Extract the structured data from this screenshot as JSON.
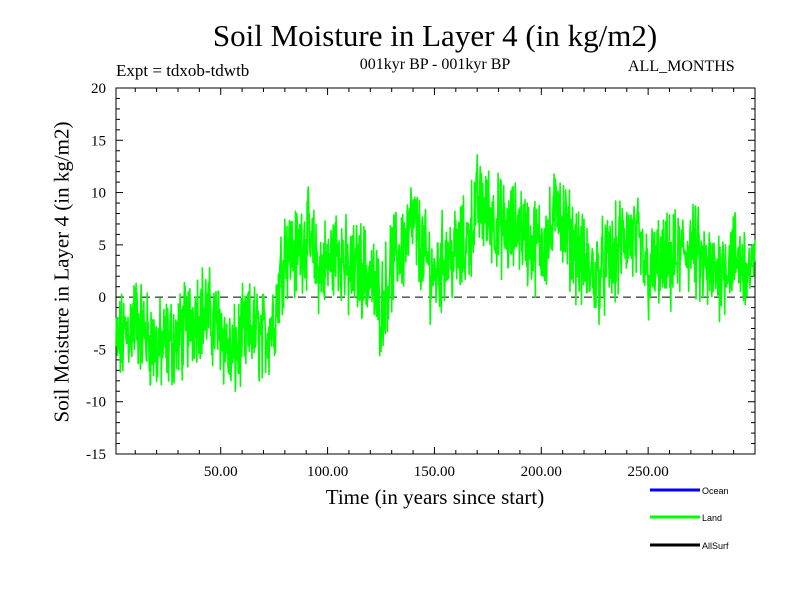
{
  "title": "Soil Moisture in Layer 4 (in kg/m2)",
  "experiment": "Expt = tdxob-tdwtb",
  "period": "001kyr BP - 001kyr BP",
  "months": "ALL_MONTHS",
  "chart_data": {
    "type": "line",
    "xlabel": "Time (in years since start)",
    "ylabel": "Soil Moisture in Layer 4 (in kg/m2)",
    "xlim": [
      1,
      300
    ],
    "ylim": [
      -15,
      20
    ],
    "xticks": [
      50,
      100,
      150,
      200,
      250
    ],
    "xtick_labels": [
      "50.00",
      "100.00",
      "150.00",
      "200.00",
      "250.00"
    ],
    "yticks": [
      -15,
      -10,
      -5,
      0,
      5,
      10,
      15,
      20
    ],
    "ytick_labels": [
      "-15",
      "-10",
      "-5",
      "0",
      "5",
      "10",
      "15",
      "20"
    ],
    "zero_line": "dashed",
    "grid": false,
    "legend_placement": "bottom-right",
    "series": [
      {
        "name": "Ocean",
        "color": "#0000ff",
        "values": []
      },
      {
        "name": "Land",
        "color": "#00ff00",
        "x": [
          1,
          10,
          20,
          30,
          40,
          50,
          55,
          60,
          65,
          70,
          75,
          80,
          85,
          90,
          95,
          100,
          105,
          110,
          115,
          120,
          125,
          130,
          135,
          140,
          145,
          150,
          155,
          160,
          165,
          170,
          175,
          180,
          185,
          190,
          195,
          200,
          205,
          208,
          210,
          215,
          220,
          225,
          230,
          235,
          240,
          245,
          250,
          255,
          260,
          265,
          270,
          275,
          280,
          285,
          290,
          295,
          300
        ],
        "values": [
          -5,
          -2,
          -5,
          -4,
          -1,
          -3,
          -6,
          -4,
          -3,
          -4,
          -2,
          5,
          4,
          6,
          3,
          3,
          5,
          2,
          3,
          2,
          -1,
          3,
          5,
          7,
          4,
          2,
          4,
          4,
          5,
          9,
          8,
          7,
          6,
          7,
          5,
          5,
          6,
          10,
          7,
          5,
          3,
          2,
          3,
          4,
          6,
          5,
          2,
          3,
          3,
          4,
          5,
          3,
          2,
          3,
          4,
          3,
          2
        ]
      },
      {
        "name": "AllSurf",
        "color": "#000000",
        "values": []
      }
    ]
  }
}
